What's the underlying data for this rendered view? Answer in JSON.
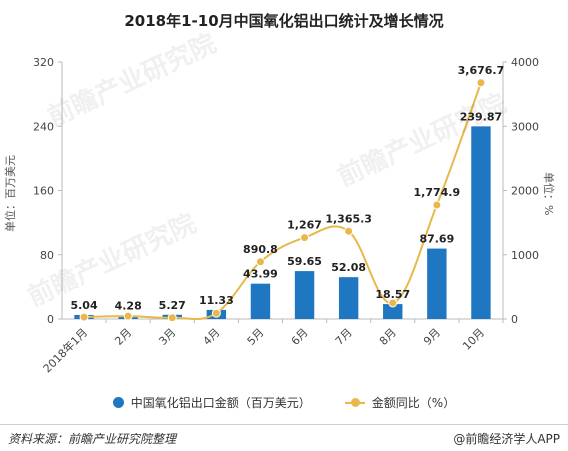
{
  "chart_data": {
    "type": "bar",
    "title": "2018年1-10月中国氧化铝出口统计及增长情况",
    "categories": [
      "2018年1月",
      "2月",
      "3月",
      "4月",
      "5月",
      "6月",
      "7月",
      "8月",
      "9月",
      "10月"
    ],
    "series": [
      {
        "name": "中国氧化铝出口金额（百万美元）",
        "type": "bar",
        "axis": "left",
        "values": [
          5.04,
          4.28,
          5.27,
          11.33,
          43.99,
          59.65,
          52.08,
          18.57,
          87.69,
          239.87
        ],
        "labels": [
          "5.04",
          "4.28",
          "5.27",
          "11.33",
          "43.99",
          "59.65",
          "52.08",
          "18.57",
          "87.69",
          "239.87"
        ]
      },
      {
        "name": "金额同比（%）",
        "type": "line",
        "axis": "right",
        "values": [
          30,
          45,
          20,
          90,
          890.8,
          1267,
          1365.3,
          250,
          1774.9,
          3676.7
        ],
        "labels": [
          "",
          "",
          "",
          "",
          "890.8",
          "1,267",
          "1,365.3",
          "",
          "1,774.9",
          "3,676.7"
        ]
      }
    ],
    "ylabel_left": "单位：百万美元",
    "ylabel_right": "单位：%",
    "ylim_left": [
      0,
      320
    ],
    "yticks_left": [
      "0",
      "80",
      "160",
      "240",
      "320"
    ],
    "ylim_right": [
      0,
      4000
    ],
    "yticks_right": [
      "0",
      "1000",
      "2000",
      "3000",
      "4000"
    ],
    "legend_position": "bottom",
    "grid": false,
    "colors": {
      "bar": "#1f77c2",
      "line": "#e8b84a",
      "axis": "#bbbbbb"
    }
  },
  "footer": {
    "source": "资料来源：前瞻产业研究院整理",
    "brand": "@前瞻经济学人APP"
  },
  "watermark": "前瞻产业研究院"
}
